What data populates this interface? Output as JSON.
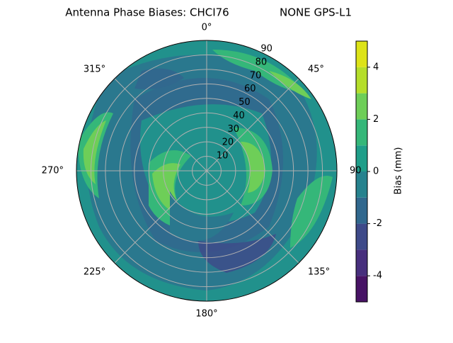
{
  "chart_data": {
    "type": "polar_contour",
    "title": "Antenna Phase Biases: CHCI76",
    "subtitle": "NONE GPS-L1",
    "thetaticks": [
      {
        "value": 0,
        "label": "0°"
      },
      {
        "value": 45,
        "label": "45°"
      },
      {
        "value": 90,
        "label": "90"
      },
      {
        "value": 135,
        "label": "135°"
      },
      {
        "value": 180,
        "label": "180°"
      },
      {
        "value": 225,
        "label": "225°"
      },
      {
        "value": 270,
        "label": "270°"
      },
      {
        "value": 315,
        "label": "315°"
      }
    ],
    "rlim": [
      0,
      90
    ],
    "rticks": [
      10,
      20,
      30,
      40,
      50,
      60,
      70,
      80,
      90
    ],
    "grid": true,
    "colorbar_label": "Bias (mm)",
    "clim": [
      -5,
      5
    ],
    "cticks": [
      -4,
      -2,
      0,
      2,
      4
    ],
    "levels": [
      -5,
      -4,
      -3,
      -2,
      -1,
      0,
      1,
      2,
      3,
      4,
      5
    ],
    "colors": [
      "#471365",
      "#472f7d",
      "#3e4a89",
      "#31688e",
      "#26828e",
      "#1f9e89",
      "#35b779",
      "#6ece58",
      "#b5de2b",
      "#dde318"
    ]
  }
}
